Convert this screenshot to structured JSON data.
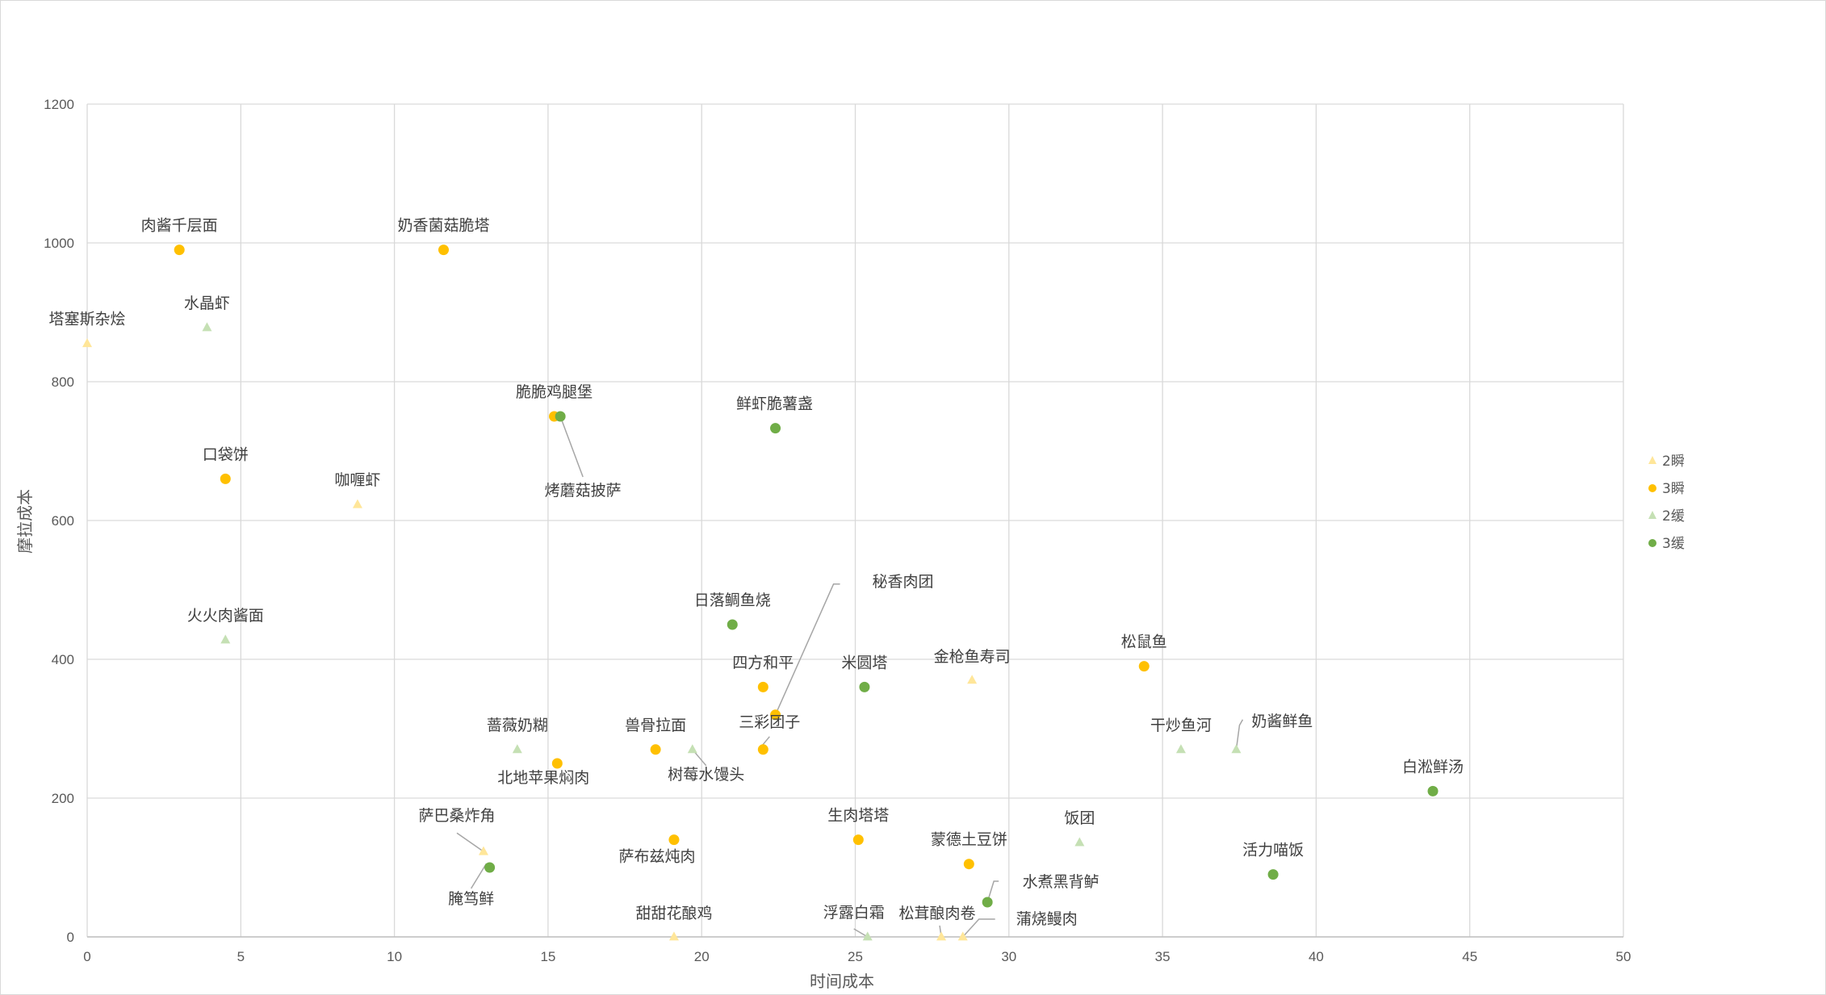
{
  "chart_data": {
    "type": "scatter",
    "title": "",
    "xlabel": "时间成本",
    "ylabel": "摩拉成本",
    "xlim": [
      0,
      50
    ],
    "ylim": [
      0,
      1200
    ],
    "xticks": [
      "0",
      "5",
      "10",
      "15",
      "20",
      "25",
      "30",
      "35",
      "40",
      "45",
      "50"
    ],
    "yticks": [
      "0",
      "200",
      "400",
      "600",
      "800",
      "1000",
      "1200"
    ],
    "grid": true,
    "legend_position": "right",
    "series": [
      {
        "name": "2瞬",
        "marker": "triangle",
        "color": "#FFE699",
        "points": [
          {
            "x": 0,
            "y": 855,
            "label": "塔塞斯杂烩"
          },
          {
            "x": 8.8,
            "y": 623,
            "label": "咖喱虾"
          },
          {
            "x": 12.9,
            "y": 123,
            "label": "萨巴桑炸角"
          },
          {
            "x": 19.1,
            "y": 0,
            "label": "甜甜花酿鸡"
          },
          {
            "x": 27.8,
            "y": 0,
            "label": "松茸酿肉卷"
          },
          {
            "x": 28.5,
            "y": 0,
            "label": "蒲烧鳗肉"
          },
          {
            "x": 28.8,
            "y": 370,
            "label": "金枪鱼寿司"
          }
        ]
      },
      {
        "name": "3瞬",
        "marker": "circle",
        "color": "#FFC000",
        "points": [
          {
            "x": 3,
            "y": 990,
            "label": "肉酱千层面"
          },
          {
            "x": 11.6,
            "y": 990,
            "label": "奶香菌菇脆塔"
          },
          {
            "x": 4.5,
            "y": 660,
            "label": "口袋饼"
          },
          {
            "x": 15.2,
            "y": 750,
            "label": "脆脆鸡腿堡"
          },
          {
            "x": 15.3,
            "y": 250,
            "label": "北地苹果焖肉"
          },
          {
            "x": 18.5,
            "y": 270,
            "label": "兽骨拉面"
          },
          {
            "x": 19.1,
            "y": 140,
            "label": "萨布兹炖肉"
          },
          {
            "x": 22,
            "y": 360,
            "label": "四方和平"
          },
          {
            "x": 22.4,
            "y": 320,
            "label": "秘香肉团"
          },
          {
            "x": 22,
            "y": 270,
            "label": "三彩团子"
          },
          {
            "x": 25.1,
            "y": 140,
            "label": "生肉塔塔"
          },
          {
            "x": 28.7,
            "y": 105,
            "label": "蒙德土豆饼"
          },
          {
            "x": 34.4,
            "y": 390,
            "label": "松鼠鱼"
          }
        ]
      },
      {
        "name": "2缓",
        "marker": "triangle",
        "color": "#C5E0B4",
        "points": [
          {
            "x": 3.9,
            "y": 878,
            "label": "水晶虾"
          },
          {
            "x": 4.5,
            "y": 428,
            "label": "火火肉酱面"
          },
          {
            "x": 14,
            "y": 270,
            "label": "蔷薇奶糊"
          },
          {
            "x": 19.7,
            "y": 270,
            "label": "树莓水馒头"
          },
          {
            "x": 25.4,
            "y": 0,
            "label": "浮露白霜"
          },
          {
            "x": 32.3,
            "y": 136,
            "label": "饭团"
          },
          {
            "x": 35.6,
            "y": 270,
            "label": "干炒鱼河"
          },
          {
            "x": 37.4,
            "y": 270,
            "label": "奶酱鲜鱼"
          }
        ]
      },
      {
        "name": "3缓",
        "marker": "circle",
        "color": "#70AD47",
        "points": [
          {
            "x": 15.4,
            "y": 750,
            "label": "烤蘑菇披萨"
          },
          {
            "x": 22.4,
            "y": 733,
            "label": "鲜虾脆薯盏"
          },
          {
            "x": 21,
            "y": 450,
            "label": "日落鲷鱼烧"
          },
          {
            "x": 25.3,
            "y": 360,
            "label": "米圆塔"
          },
          {
            "x": 13.1,
            "y": 100,
            "label": "腌笃鲜"
          },
          {
            "x": 29.3,
            "y": 50,
            "label": "水煮黑背鲈"
          },
          {
            "x": 38.6,
            "y": 90,
            "label": "活力喵饭"
          },
          {
            "x": 43.8,
            "y": 210,
            "label": "白淞鲜汤"
          }
        ]
      }
    ]
  }
}
